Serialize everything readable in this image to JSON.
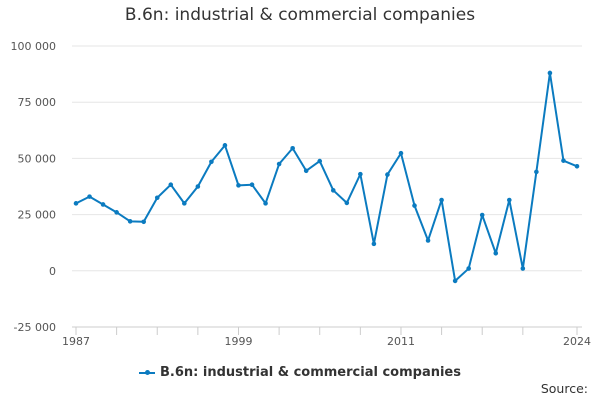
{
  "chart_data": {
    "type": "line",
    "title": "B.6n: industrial & commercial companies",
    "xlabel": "",
    "ylabel": "",
    "x": [
      1987,
      1988,
      1989,
      1990,
      1991,
      1992,
      1993,
      1994,
      1995,
      1996,
      1997,
      1998,
      1999,
      2000,
      2001,
      2002,
      2003,
      2004,
      2005,
      2006,
      2007,
      2008,
      2009,
      2010,
      2011,
      2012,
      2013,
      2014,
      2015,
      2016,
      2017,
      2018,
      2019,
      2020,
      2021,
      2022,
      2023,
      2024
    ],
    "series": [
      {
        "name": "B.6n: industrial & commercial companies",
        "color": "#0b7bc0",
        "values": [
          30000,
          33000,
          29500,
          26000,
          22000,
          21800,
          32500,
          38300,
          30000,
          37500,
          48500,
          55800,
          38000,
          38300,
          30000,
          47500,
          54500,
          44500,
          48800,
          35800,
          30200,
          43000,
          12000,
          42800,
          52300,
          29000,
          13500,
          31500,
          -4500,
          1000,
          24800,
          7800,
          31500,
          1000,
          44000,
          88000,
          49000,
          46500
        ]
      }
    ],
    "xlim": [
      1987,
      2024
    ],
    "x_tick_labels": [
      "1987",
      "1999",
      "2011",
      "2024"
    ],
    "x_tick_positions": [
      1987,
      1999,
      2011,
      2024
    ],
    "x_minor_ticks": [
      1987,
      1990,
      1993,
      1996,
      1999,
      2002,
      2005,
      2008,
      2011,
      2014,
      2017,
      2020,
      2024
    ],
    "ylim": [
      -25000,
      100000
    ],
    "y_ticks": [
      -25000,
      0,
      25000,
      50000,
      75000,
      100000
    ],
    "y_tick_labels": [
      "-25 000",
      "0",
      "25 000",
      "50 000",
      "75 000",
      "100 000"
    ],
    "grid": true,
    "legend": "bottom-center"
  },
  "legend_label": "B.6n: industrial & commercial companies",
  "source_label": "Source:"
}
